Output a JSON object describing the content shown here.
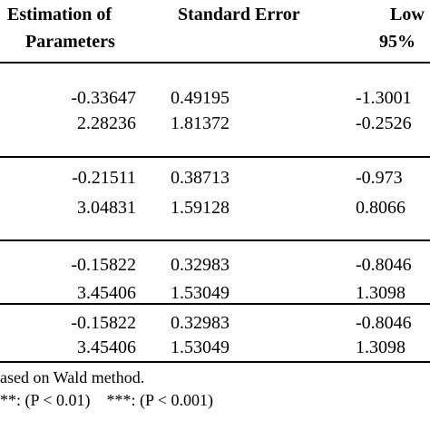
{
  "header": {
    "col1_line1": "Estimation of",
    "col1_line2": "Parameters",
    "col2": "Standard Error",
    "col3_line1": "Low",
    "col3_line2": "95%"
  },
  "rows": [
    {
      "est": "-0.33647",
      "se": "0.49195",
      "low": "-1.3001"
    },
    {
      "est": "2.28236",
      "se": "1.81372",
      "low": "-0.2526"
    },
    {
      "est": "-0.21511",
      "se": "0.38713",
      "low": "-0.973"
    },
    {
      "est": "3.04831",
      "se": "1.59128",
      "low": "0.8066"
    },
    {
      "est": "-0.15822",
      "se": "0.32983",
      "low": "-0.8046"
    },
    {
      "est": "3.45406",
      "se": "1.53049",
      "low": "1.3098"
    },
    {
      "est": "-0.15822",
      "se": "0.32983",
      "low": "-0.8046"
    },
    {
      "est": "3.45406",
      "se": "1.53049",
      "low": "1.3098"
    }
  ],
  "footnotes": {
    "line1": "ased on Wald method.",
    "line2": "**: (P < 0.01)    ***: (P < 0.001)"
  }
}
